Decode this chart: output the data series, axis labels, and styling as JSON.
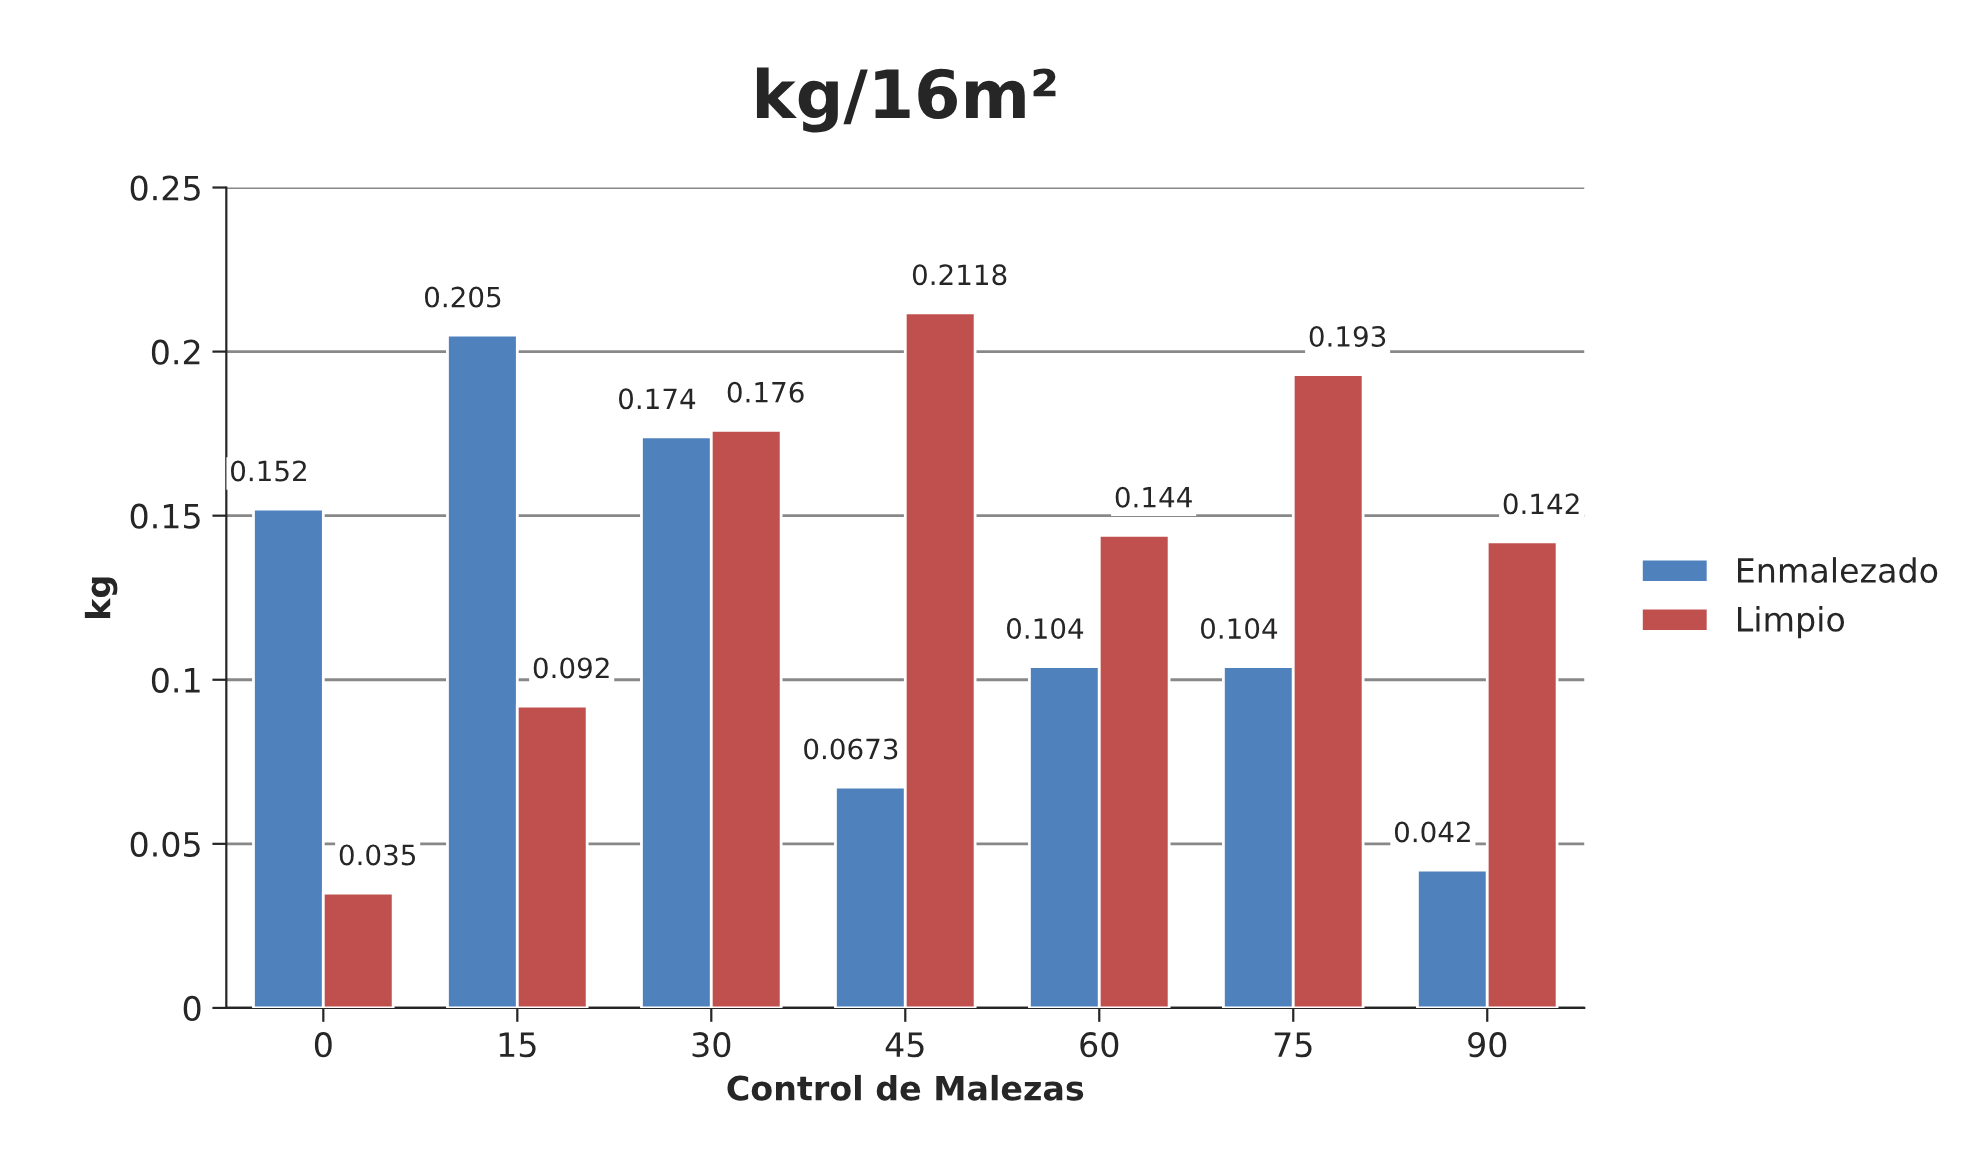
{
  "chart_data": {
    "type": "bar",
    "title": "kg/16m²",
    "xlabel": "Control de Malezas",
    "ylabel": "kg",
    "categories": [
      "0",
      "15",
      "30",
      "45",
      "60",
      "75",
      "90"
    ],
    "series": [
      {
        "name": "Enmalezado",
        "color": "#4f81bd",
        "values": [
          0.152,
          0.205,
          0.174,
          0.0673,
          0.104,
          0.104,
          0.042
        ]
      },
      {
        "name": "Limpio",
        "color": "#c0504d",
        "values": [
          0.035,
          0.092,
          0.176,
          0.2118,
          0.144,
          0.193,
          0.142
        ]
      }
    ],
    "ylim": [
      0,
      0.25
    ],
    "yticks": [
      0,
      0.05,
      0.1,
      0.15,
      0.2,
      0.25
    ],
    "grid": "y",
    "legend": "right",
    "data_labels": true
  }
}
